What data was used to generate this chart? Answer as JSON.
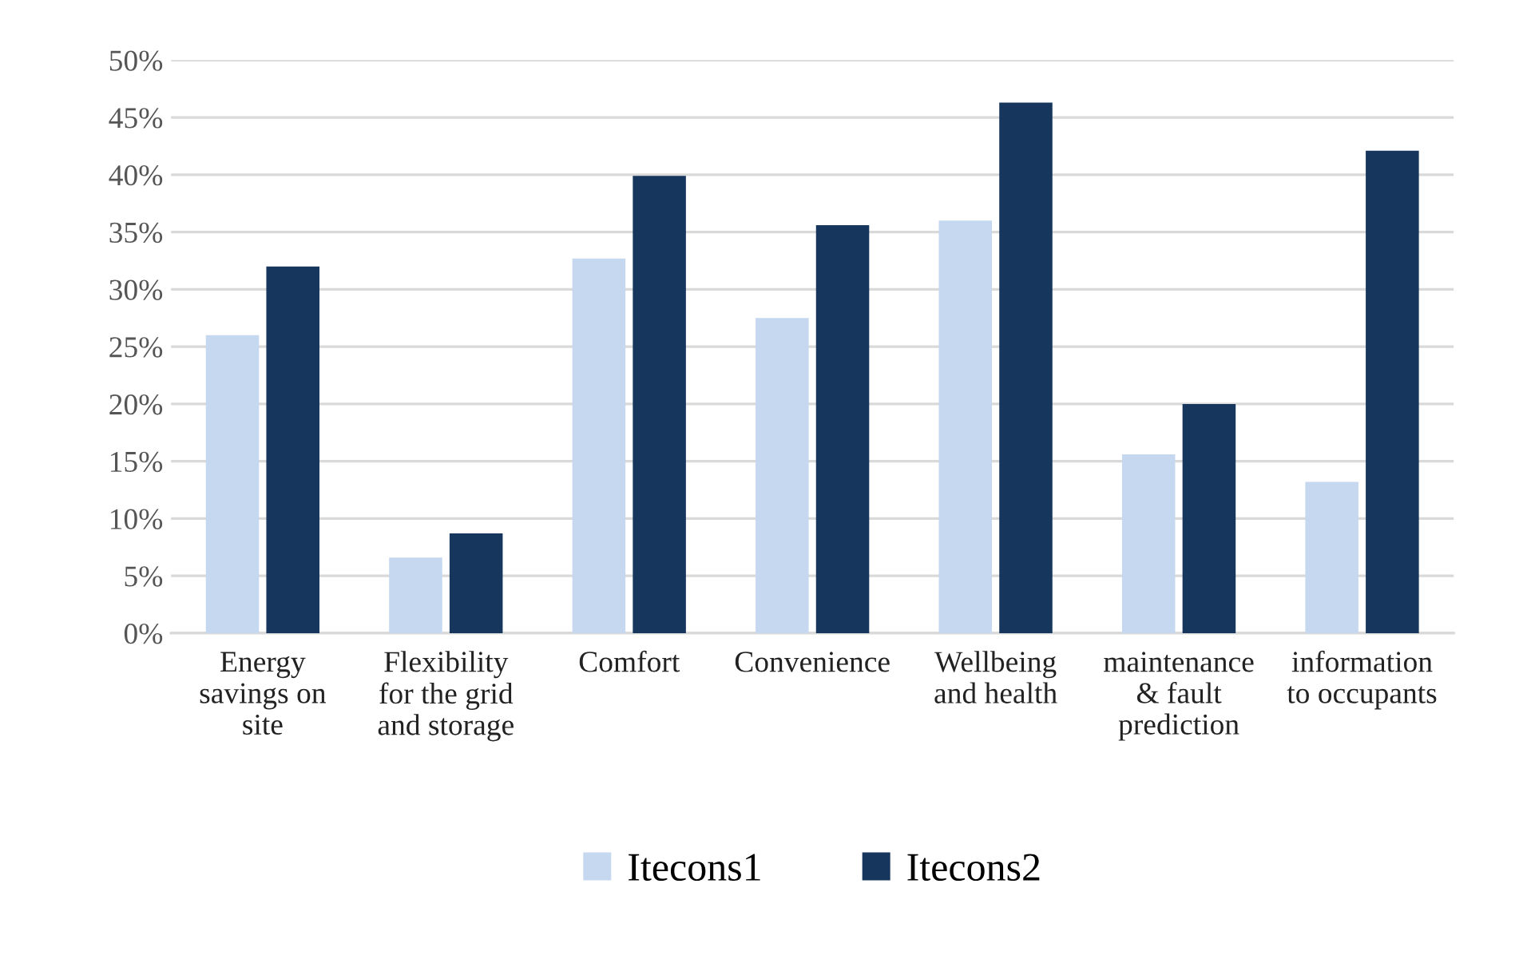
{
  "chart_data": {
    "type": "bar",
    "categories": [
      "Energy\nsavings on\nsite",
      "Flexibility\nfor the grid\nand storage",
      "Comfort",
      "Convenience",
      "Wellbeing\nand health",
      "maintenance\n& fault\nprediction",
      "information\nto occupants"
    ],
    "series": [
      {
        "name": "Itecons1",
        "color": "#c6d8ef",
        "values": [
          26.0,
          6.6,
          32.7,
          27.5,
          36.0,
          15.6,
          13.2
        ]
      },
      {
        "name": "Itecons2",
        "color": "#17365d",
        "values": [
          32.0,
          8.7,
          39.9,
          35.6,
          46.3,
          20.0,
          42.1
        ]
      }
    ],
    "ylim": [
      0,
      50
    ],
    "yticks": [
      {
        "value": 0,
        "label": "0%"
      },
      {
        "value": 5,
        "label": "5%"
      },
      {
        "value": 10,
        "label": "10%"
      },
      {
        "value": 15,
        "label": "15%"
      },
      {
        "value": 20,
        "label": "20%"
      },
      {
        "value": 25,
        "label": "25%"
      },
      {
        "value": 30,
        "label": "30%"
      },
      {
        "value": 35,
        "label": "35%"
      },
      {
        "value": 40,
        "label": "40%"
      },
      {
        "value": 45,
        "label": "45%"
      },
      {
        "value": 50,
        "label": "50%"
      }
    ],
    "grid": "y",
    "legend": "bottom"
  }
}
